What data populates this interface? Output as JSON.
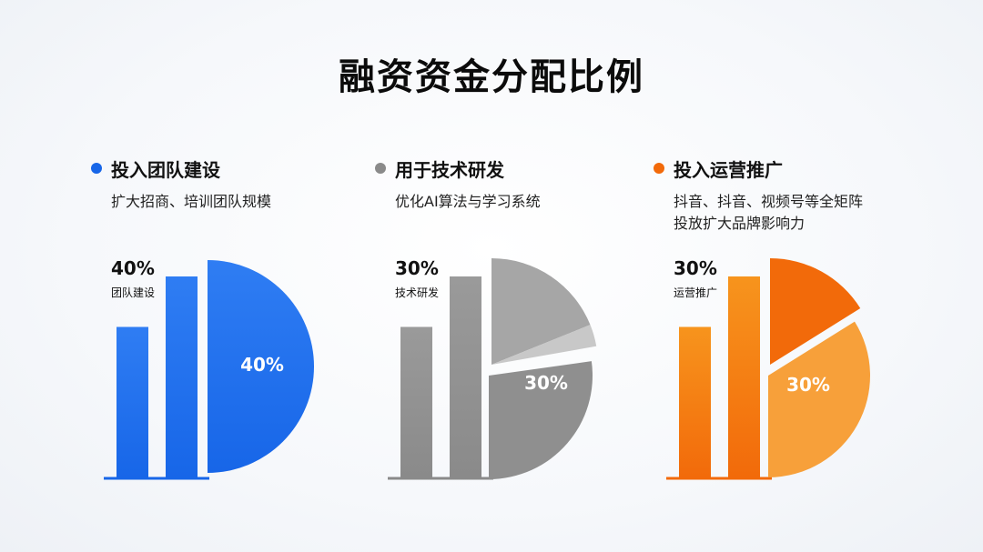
{
  "title": "融资资金分配比例",
  "panels": [
    {
      "title": "投入团队建设",
      "desc_lines": [
        "扩大招商、培训团队规模"
      ],
      "stat_pct": "40%",
      "stat_label": "团队建设",
      "pie_label": "40%",
      "color": "#2f7df3",
      "color_dark": "#1766e8"
    },
    {
      "title": "用于技术研发",
      "desc_lines": [
        "优化AI算法与学习系统"
      ],
      "stat_pct": "30%",
      "stat_label": "技术研发",
      "pie_label": "30%",
      "color": "#9a9a9a",
      "color_dark": "#8a8a8a"
    },
    {
      "title": "投入运营推广",
      "desc_lines": [
        "抖音、抖音、视频号等全矩阵",
        "投放扩大品牌影响力"
      ],
      "stat_pct": "30%",
      "stat_label": "运营推广",
      "pie_label": "30%",
      "color": "#f7941d",
      "color_dark": "#f26a0a"
    }
  ],
  "chart_data": [
    {
      "type": "bar",
      "categories": [
        "",
        ""
      ],
      "values": [
        30,
        40
      ],
      "title": "投入团队建设"
    },
    {
      "type": "pie",
      "labels": [
        "团队建设"
      ],
      "values": [
        40
      ],
      "title": "投入团队建设"
    },
    {
      "type": "bar",
      "categories": [
        "",
        ""
      ],
      "values": [
        30,
        40
      ],
      "title": "用于技术研发"
    },
    {
      "type": "pie",
      "labels": [
        "技术研发"
      ],
      "values": [
        30
      ],
      "title": "用于技术研发"
    },
    {
      "type": "bar",
      "categories": [
        "",
        ""
      ],
      "values": [
        30,
        40
      ],
      "title": "投入运营推广"
    },
    {
      "type": "pie",
      "labels": [
        "运营推广"
      ],
      "values": [
        30
      ],
      "title": "投入运营推广"
    }
  ]
}
